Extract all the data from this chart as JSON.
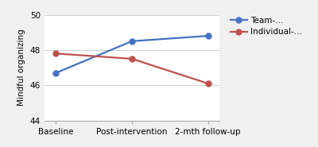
{
  "x_labels": [
    "Baseline",
    "Post-intervention",
    "2-mth follow-up"
  ],
  "team_values": [
    46.7,
    48.5,
    48.8
  ],
  "individual_values": [
    47.8,
    47.5,
    46.1
  ],
  "team_color": "#4472C4",
  "individual_color": "#C0504D",
  "ylabel": "Mindful organizing",
  "ylim": [
    44,
    50
  ],
  "yticks": [
    44,
    46,
    48,
    50
  ],
  "team_label": "Team-...",
  "individual_label": "Individual-...",
  "legend_fontsize": 7.5,
  "axis_fontsize": 7.5,
  "tick_fontsize": 7.5,
  "linewidth": 1.6,
  "markersize": 5,
  "bg_color": "#f0f0f0",
  "plot_bg_color": "#ffffff",
  "grid_color": "#d0d0d0"
}
